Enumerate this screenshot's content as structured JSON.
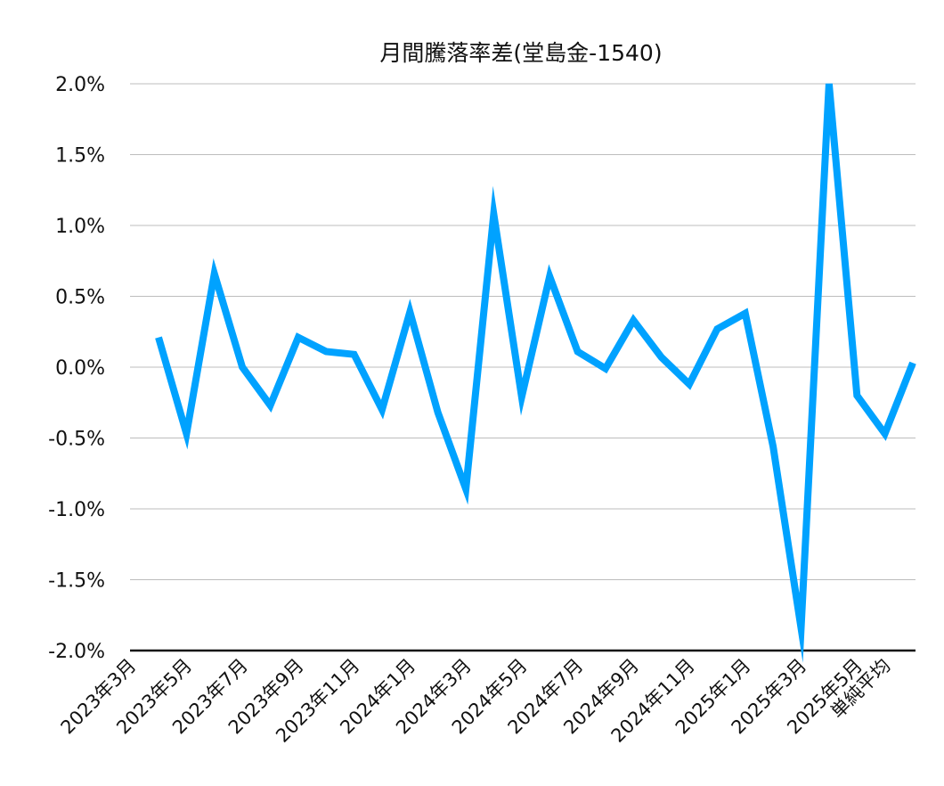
{
  "chart_data": {
    "type": "line",
    "title": "月間騰落率差(堂島金-1540)",
    "xlabel": "",
    "ylabel": "",
    "ylim": [
      -0.02,
      0.02
    ],
    "yticks": [
      "2.0%",
      "1.5%",
      "1.0%",
      "0.5%",
      "0.0%",
      "-0.5%",
      "-1.0%",
      "-1.5%",
      "-2.0%"
    ],
    "ytick_values": [
      0.02,
      0.015,
      0.01,
      0.005,
      0.0,
      -0.005,
      -0.01,
      -0.015,
      -0.02
    ],
    "grid": true,
    "legend": null,
    "x_tick_labels": [
      "2023年3月",
      "2023年5月",
      "2023年7月",
      "2023年9月",
      "2023年11月",
      "2024年1月",
      "2024年3月",
      "2024年5月",
      "2024年7月",
      "2024年9月",
      "2024年11月",
      "2025年1月",
      "2025年3月",
      "2025年5月",
      "単純平均"
    ],
    "categories": [
      "2023年3月",
      "2023年4月",
      "2023年5月",
      "2023年6月",
      "2023年7月",
      "2023年8月",
      "2023年9月",
      "2023年10月",
      "2023年11月",
      "2023年12月",
      "2024年1月",
      "2024年2月",
      "2024年3月",
      "2024年4月",
      "2024年5月",
      "2024年6月",
      "2024年7月",
      "2024年8月",
      "2024年9月",
      "2024年10月",
      "2024年11月",
      "2024年12月",
      "2025年1月",
      "2025年2月",
      "2025年3月",
      "2025年4月",
      "2025年5月",
      "単純平均"
    ],
    "series": [
      {
        "name": "月間騰落率差",
        "color": "#00A2FF",
        "values": [
          0.0021,
          -0.0047,
          0.0066,
          0.0,
          -0.0027,
          0.0021,
          0.0011,
          0.0009,
          -0.003,
          0.0039,
          -0.0032,
          -0.0086,
          0.0108,
          -0.0021,
          0.0064,
          0.0011,
          -0.0001,
          0.0033,
          0.0007,
          -0.0012,
          0.0027,
          0.0038,
          -0.0056,
          -0.0184,
          0.02,
          -0.002,
          -0.0047,
          0.0003
        ]
      }
    ]
  }
}
